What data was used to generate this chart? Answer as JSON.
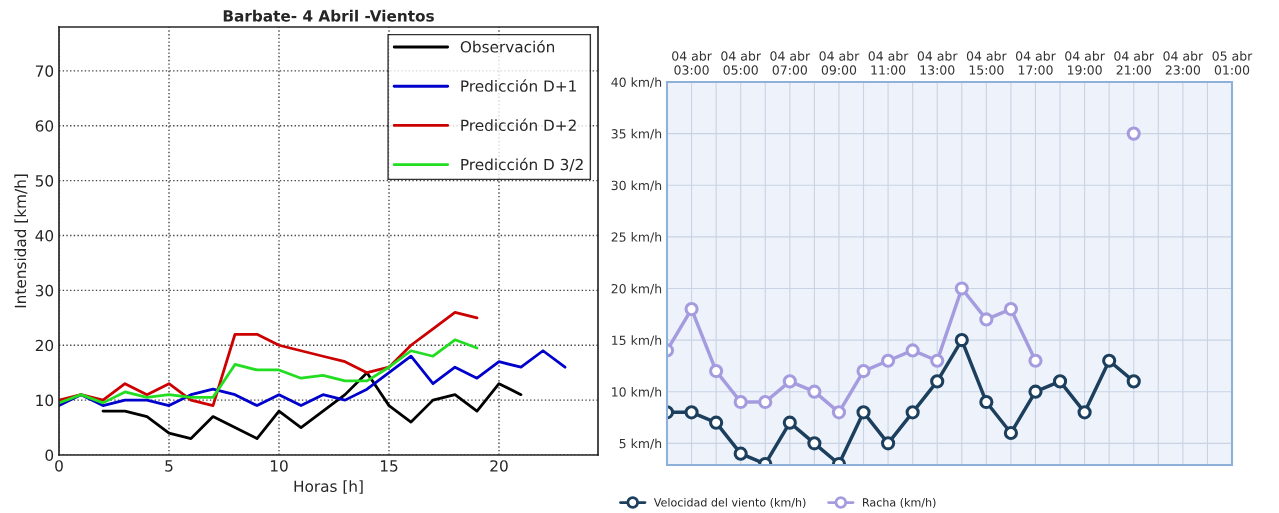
{
  "chart_data": [
    {
      "type": "line",
      "title": "Barbate- 4 Abril -Vientos",
      "xlabel": "Horas [h]",
      "ylabel": "Intensidad [km/h]",
      "xlim": [
        0,
        24.5
      ],
      "ylim": [
        0,
        78
      ],
      "xticks": [
        0,
        5,
        10,
        15,
        20
      ],
      "yticks": [
        0,
        10,
        20,
        30,
        40,
        50,
        60,
        70
      ],
      "grid": true,
      "legend": "top right",
      "marker": "none",
      "line_style": "solid",
      "series": [
        {
          "name": "Observación",
          "color": "#000000",
          "x": [
            2,
            3,
            4,
            5,
            6,
            7,
            8,
            9,
            10,
            11,
            12,
            13,
            14,
            15,
            16,
            17,
            18,
            19,
            20,
            21
          ],
          "values": [
            8,
            8,
            7,
            4,
            3,
            7,
            5,
            3,
            8,
            5,
            8,
            11,
            15,
            9,
            6,
            10,
            11,
            8,
            13,
            11
          ]
        },
        {
          "name": "Predicción D+1",
          "color": "#0000cc",
          "x": [
            0,
            1,
            2,
            3,
            4,
            5,
            6,
            7,
            8,
            9,
            10,
            11,
            12,
            13,
            14,
            15,
            16,
            17,
            18,
            19,
            20,
            21,
            22,
            23
          ],
          "values": [
            9,
            11,
            9,
            10,
            10,
            9,
            11,
            12,
            11,
            9,
            11,
            9,
            11,
            10,
            12,
            15,
            18,
            13,
            16,
            14,
            17,
            16,
            19,
            16
          ]
        },
        {
          "name": "Predicción D+2",
          "color": "#cc0000",
          "x": [
            0,
            1,
            2,
            3,
            4,
            5,
            6,
            7,
            8,
            9,
            10,
            11,
            12,
            13,
            14,
            15,
            16,
            17,
            18,
            19
          ],
          "values": [
            10,
            11,
            10,
            13,
            11,
            13,
            10,
            9,
            22,
            22,
            20,
            19,
            18,
            17,
            15,
            16,
            20,
            23,
            26,
            25
          ]
        },
        {
          "name": "Predicción D 3/2",
          "color": "#22dd22",
          "x": [
            0,
            1,
            2,
            3,
            4,
            5,
            6,
            7,
            8,
            9,
            10,
            11,
            12,
            13,
            14,
            15,
            16,
            17,
            18,
            19
          ],
          "values": [
            9.5,
            11,
            9.5,
            11.5,
            10.5,
            11,
            10.5,
            10.5,
            16.5,
            15.5,
            15.5,
            14,
            14.5,
            13.5,
            13.5,
            16,
            19,
            18,
            21,
            19.5
          ]
        }
      ]
    },
    {
      "type": "line",
      "categories": [
        null,
        "04 abr\n03:00",
        null,
        "04 abr\n05:00",
        null,
        "04 abr\n07:00",
        null,
        "04 abr\n09:00",
        null,
        "04 abr\n11:00",
        null,
        "04 abr\n13:00",
        null,
        "04 abr\n15:00",
        null,
        "04 abr\n17:00",
        null,
        "04 abr\n19:00",
        null,
        "04 abr\n21:00",
        null,
        "04 abr\n23:00",
        null,
        "05 abr\n01:00"
      ],
      "ylim": [
        2.9,
        40
      ],
      "yticks": [
        {
          "value": 5,
          "label": "5 km/h"
        },
        {
          "value": 10,
          "label": "10 km/h"
        },
        {
          "value": 15,
          "label": "15 km/h"
        },
        {
          "value": 20,
          "label": "20 km/h"
        },
        {
          "value": 25,
          "label": "25 km/h"
        },
        {
          "value": 30,
          "label": "30 km/h"
        },
        {
          "value": 35,
          "label": "35 km/h"
        },
        {
          "value": 40,
          "label": "40 km/h"
        }
      ],
      "grid": true,
      "legend": "bottom",
      "marker": "circle",
      "line_style": "solid",
      "series": [
        {
          "name": "Velocidad del viento (km/h)",
          "color": "#1c3f5e",
          "values": [
            8,
            8,
            7,
            4,
            3,
            7,
            5,
            3,
            8,
            5,
            8,
            11,
            15,
            9,
            6,
            10,
            11,
            8,
            13,
            11,
            null,
            null,
            null,
            null
          ]
        },
        {
          "name": "Racha (km/h)",
          "color": "#a59ce0",
          "values": [
            14,
            18,
            12,
            9,
            9,
            11,
            10,
            8,
            12,
            13,
            14,
            13,
            20,
            17,
            18,
            13,
            null,
            null,
            null,
            35,
            null,
            null,
            null,
            null
          ]
        }
      ]
    }
  ]
}
